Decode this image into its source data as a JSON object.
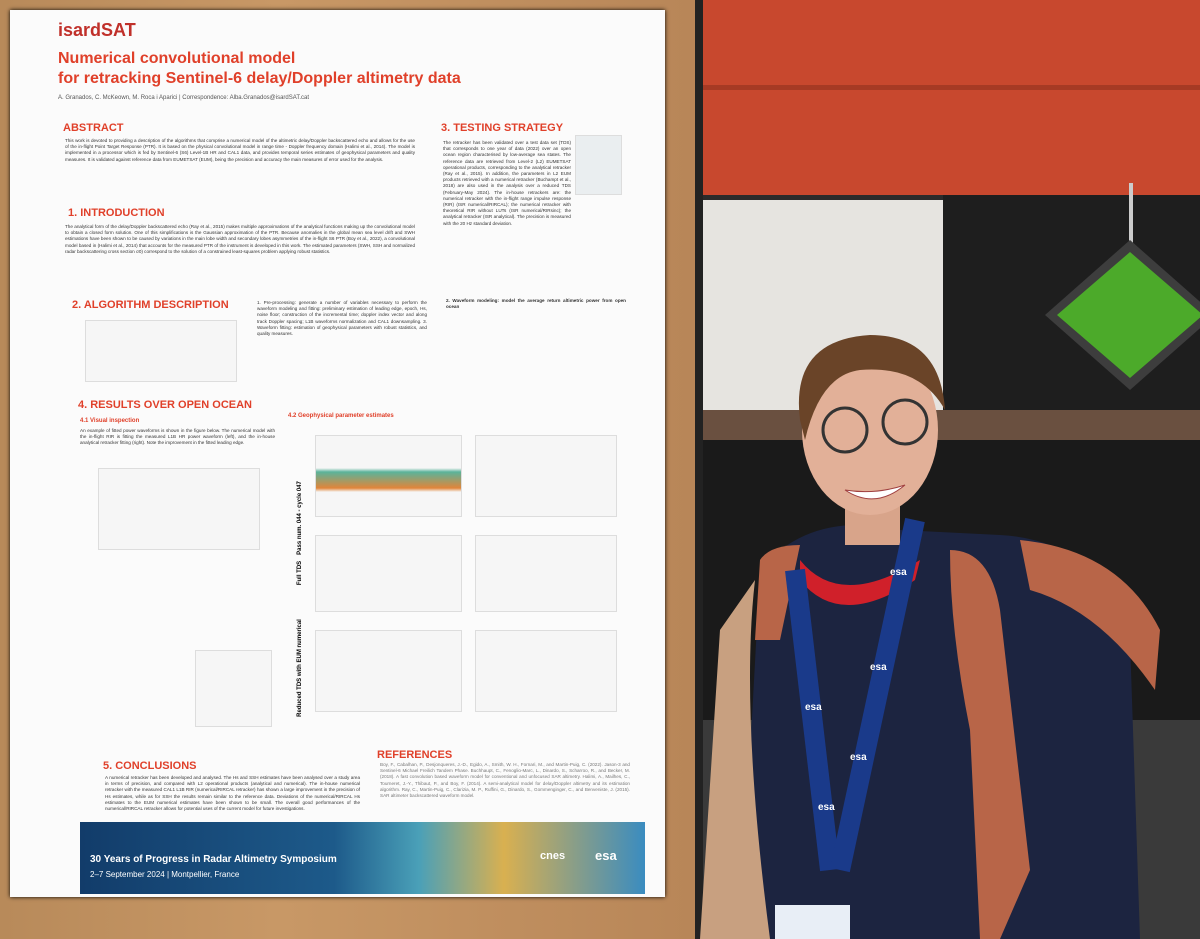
{
  "poster": {
    "logo": "isardSAT",
    "title": [
      "Numerical convolutional model",
      "for retracking Sentinel-6 delay/Doppler altimetry data"
    ],
    "authors": "A. Granados, C. McKeown, M. Roca i Aparici  |  Correspondence: Alba.Granados@isardSAT.cat",
    "sections": [
      {
        "heading": "ABSTRACT",
        "text": "This work is devoted to providing a description of the algorithms that comprise a numerical model of the altimetric delay/Doppler backscattered echo and allows for the use of the in-flight Point Target Response (PTR). It is based on the physical convolutional model in range time - Doppler frequency domain (Halimi et al., 2014). The model is implemented in a processor which is fed by Sentinel-6 (S6) Level-1B HR and CAL1 data, and provides temporal series estimates of geophysical parameters and quality measures. It is validated against reference data from EUMETSAT (EUM), being the precision and accuracy the main measures of error used for the analysis."
      },
      {
        "heading": "1. INTRODUCTION",
        "text": "The analytical form of the delay/Doppler backscattered echo (Ray et al., 2015) makes multiple approximations of the analytical functions making up the convolutional model to obtain a closed form solution. One of this simplifications is the Gaussian approximation of the PTR. Because anomalies in the global mean sea level drift and SWH estimations have been shown to be caused by variations in the main lobe width and secondary lobes asymmetries of the in-flight S6 PTR (Boy et al., 2022), a convolutional model based in (Halimi et al., 2014) that accounts for the measured PTR of the instrument is developed in this work. The estimated parameters (SWH, SSH and normalized radar backscattering cross section σ0) correspond to the solution of a constrained least-squares problem applying robust statistics."
      },
      {
        "heading": "2. ALGORITHM DESCRIPTION",
        "text": "1. Pre-processing: generate a number of variables necessary to perform the waveform modeling and fitting: preliminary estimation of leading edge, epoch, Hs, noise floor; construction of the incremental time; doppler index vector and along track Doppler spacing; L1B waveforms normalization and CAL1 downsampling. 3. Waveform fitting: estimation of geophysical parameters with robust statistics, and quality measures."
      },
      {
        "heading": "3. TESTING STRATEGY",
        "text": "The retracker has been validated over a test data set (TDS) that corresponds to one year of data (2022) over an open ocean region characterised by low-average sea states. The reference data are retrieved from Level-2 (L2) EUMETSAT operational products, corresponding to the analytical retracker (Ray et al., 2015). In addition, the parameters in L2 EUM products retrieved with a numerical retracker (Buchampt et al., 2018) are also used in the analysis over a reduced TDS (February-May 2024). The in-house retrackers are: the numerical retracker with the in-flight range impulse response (RIR) (ISR numerical/RIRCAL); the numerical retracker with theoretical RIR without LUTs (ISR numerical/RIRsinc); the analytical retracker (ISR analytical). The precision is measured with the 20 Hz standard deviation."
      },
      {
        "heading": "4. RESULTS OVER OPEN OCEAN",
        "text": "An example of fitted power waveforms is shown in the figure below. The numerical model with the in-flight RIR is fitting the measured L1B HR power waveform (left), and the in-house analytical retracker fitting (right). Note the improvement in the fitted leading edge."
      },
      {
        "heading": "5. CONCLUSIONS",
        "text": "A numerical retracker has been developed and analysed. The Hs and SSH estimates have been analysed over a study area in terms of precision, and compared with L2 operational products (analytical and numerical). The in-house numerical retracker with the measured CAL1 L1B RIR (numerical/RIRCAL retracker) has shown a large improvement in the precision of Hs estimates, while as for SSH the results remain similar to the reference data. Deviations of the numerical/RIRCAL Hs estimates to the EUM numerical estimates have been shown to be small. The overall good performances of the numerical/RIRCAL retracker allows for potential uses of the current model for future investigations."
      },
      {
        "heading": "REFERENCES",
        "text": "Boy, F., Cabalhan, P., Desjonqueres, J.-D., Egido, A., Smith, W. H., Fornari, M., and Martin-Puig, C. (2022). Jason-3 and Sentinel-6 Michael Freilich Tandem Phase. Buchhaupt, C., Fenoglio-Marc, L., Dinardo, S., Scharroo, R., and Becker, M. (2018). A fast convolution based waveform model for conventional and unfocused SAR altimetry. Halimi, A., Mailhes, C., Tourneret, J.-Y., Thibaut, P., and Boy, F. (2014). A semi-analytical model for delay/Doppler altimetry and its estimation algorithm. Ray, C., Martin-Puig, C., Clarizia, M. P., Ruffini, G., Dinardo, S., Gommenginger, C., and Benveniste, J. (2015). SAR altimeter backscattered waveform model."
      }
    ],
    "subheadings": [
      "4.1 Visual inspection",
      "4.2 Geophysical parameter estimates",
      "2. Waveform modeling: model the average return altimetric power from open ocean"
    ],
    "figure_labels": [
      "Pass num. 044 - cycle 047",
      "Full TDS",
      "Reduced TDS with EUM numerical"
    ],
    "footer": {
      "title": "30 Years of Progress in Radar Altimetry Symposium",
      "dates": "2–7 September 2024 | Montpellier, France",
      "logos": [
        "cnes",
        "esa"
      ]
    }
  },
  "lanyard": {
    "text": "esa"
  }
}
